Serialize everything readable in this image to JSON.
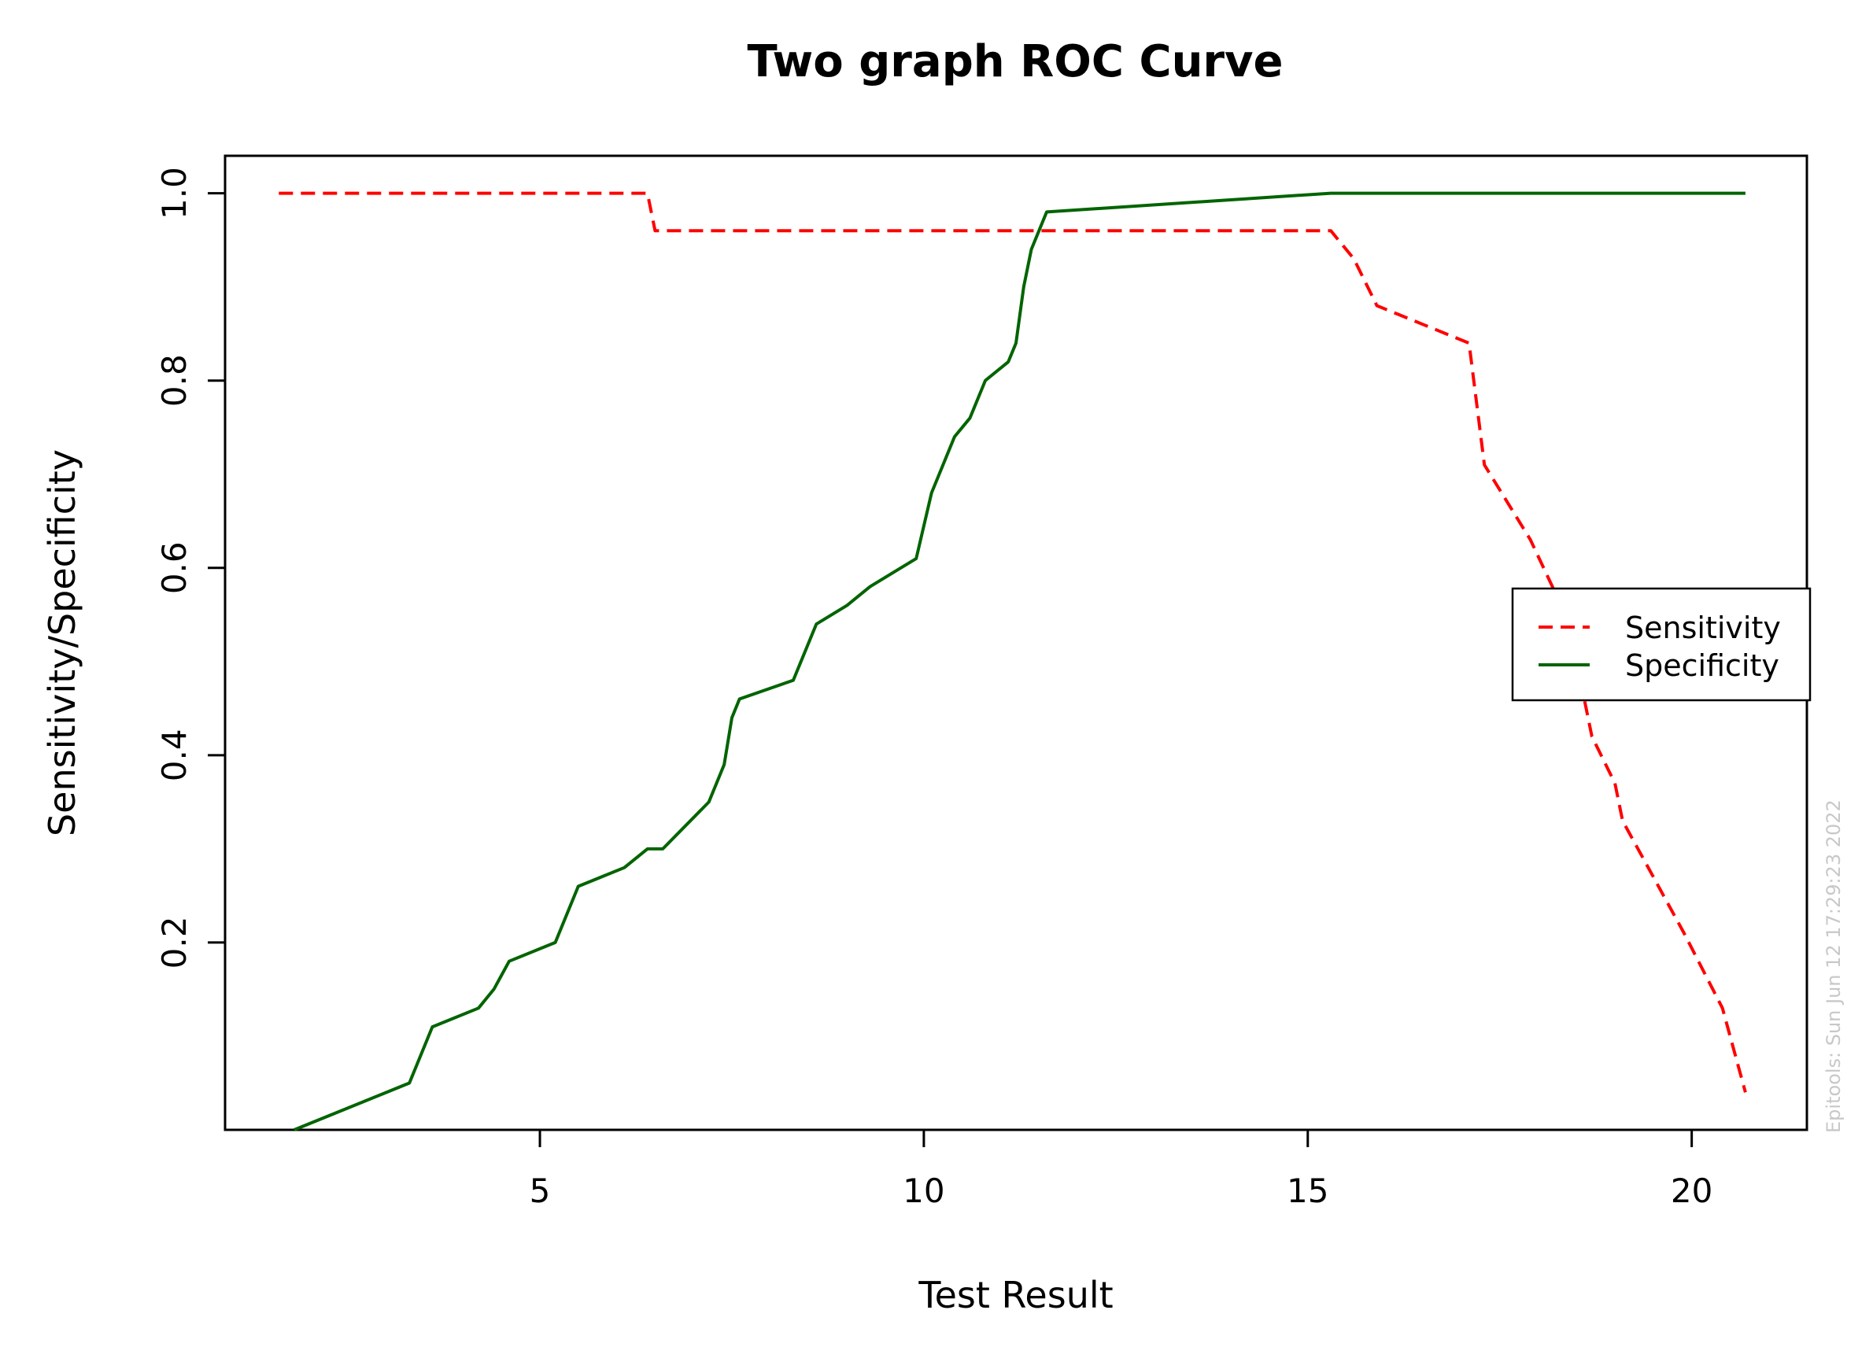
{
  "chart_data": {
    "type": "line",
    "title": "Two graph ROC Curve",
    "xlabel": "Test Result",
    "ylabel": "Sensitivity/Specificity",
    "xlim": [
      0.9,
      21.5
    ],
    "ylim": [
      0.0,
      1.04
    ],
    "x_ticks": [
      5,
      10,
      15,
      20
    ],
    "y_ticks": [
      0.2,
      0.4,
      0.6,
      0.8,
      1.0
    ],
    "x_tick_labels": [
      "5",
      "10",
      "15",
      "20"
    ],
    "y_tick_labels": [
      "0.2",
      "0.4",
      "0.6",
      "0.8",
      "1.0"
    ],
    "grid": false,
    "legend_position": "right",
    "watermark": "Epitools: Sun Jun 12 17:29:23 2022",
    "series": [
      {
        "name": "Sensitivity",
        "color": "#ff0000",
        "dash": "dashed",
        "points": [
          [
            1.6,
            1.0
          ],
          [
            6.4,
            1.0
          ],
          [
            6.5,
            0.96
          ],
          [
            15.3,
            0.96
          ],
          [
            15.6,
            0.93
          ],
          [
            15.9,
            0.88
          ],
          [
            16.5,
            0.86
          ],
          [
            17.1,
            0.84
          ],
          [
            17.3,
            0.71
          ],
          [
            17.9,
            0.63
          ],
          [
            18.3,
            0.56
          ],
          [
            18.5,
            0.5
          ],
          [
            18.7,
            0.42
          ],
          [
            19.0,
            0.37
          ],
          [
            19.1,
            0.33
          ],
          [
            19.5,
            0.27
          ],
          [
            19.9,
            0.21
          ],
          [
            20.4,
            0.13
          ],
          [
            20.7,
            0.04
          ]
        ]
      },
      {
        "name": "Specificity",
        "color": "#006400",
        "dash": "solid",
        "points": [
          [
            1.8,
            0.0
          ],
          [
            3.3,
            0.05
          ],
          [
            3.6,
            0.11
          ],
          [
            4.2,
            0.13
          ],
          [
            4.4,
            0.15
          ],
          [
            4.6,
            0.18
          ],
          [
            5.2,
            0.2
          ],
          [
            5.5,
            0.26
          ],
          [
            6.1,
            0.28
          ],
          [
            6.4,
            0.3
          ],
          [
            6.6,
            0.3
          ],
          [
            7.2,
            0.35
          ],
          [
            7.4,
            0.39
          ],
          [
            7.5,
            0.44
          ],
          [
            7.6,
            0.46
          ],
          [
            8.3,
            0.48
          ],
          [
            8.6,
            0.54
          ],
          [
            9.0,
            0.56
          ],
          [
            9.3,
            0.58
          ],
          [
            9.5,
            0.59
          ],
          [
            9.9,
            0.61
          ],
          [
            10.1,
            0.68
          ],
          [
            10.4,
            0.74
          ],
          [
            10.6,
            0.76
          ],
          [
            10.8,
            0.8
          ],
          [
            11.1,
            0.82
          ],
          [
            11.2,
            0.84
          ],
          [
            11.3,
            0.9
          ],
          [
            11.4,
            0.94
          ],
          [
            11.6,
            0.98
          ],
          [
            15.3,
            1.0
          ],
          [
            20.7,
            1.0
          ]
        ]
      }
    ]
  }
}
